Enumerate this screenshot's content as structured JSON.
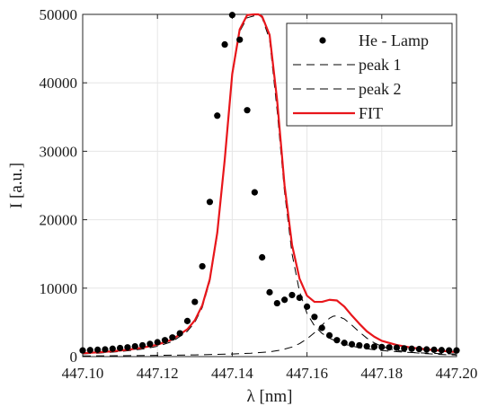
{
  "chart_data": {
    "type": "scatter",
    "xlabel": "λ [nm]",
    "ylabel": "I [a.u.]",
    "xlim": [
      447.1,
      447.2
    ],
    "ylim": [
      0,
      50000
    ],
    "x_ticks": [
      "447.10",
      "447.12",
      "447.14",
      "447.16",
      "447.18",
      "447.20"
    ],
    "y_ticks": [
      "0",
      "10000",
      "20000",
      "30000",
      "40000",
      "50000"
    ],
    "grid": true,
    "legend_position": "top-right",
    "series": [
      {
        "name": "He - Lamp",
        "kind": "markers",
        "color": "#000000",
        "x": [
          447.1,
          447.102,
          447.104,
          447.106,
          447.108,
          447.11,
          447.112,
          447.114,
          447.116,
          447.118,
          447.12,
          447.122,
          447.124,
          447.126,
          447.128,
          447.13,
          447.132,
          447.134,
          447.136,
          447.138,
          447.14,
          447.142,
          447.144,
          447.146,
          447.148,
          447.15,
          447.152,
          447.154,
          447.156,
          447.158,
          447.16,
          447.162,
          447.164,
          447.166,
          447.168,
          447.17,
          447.172,
          447.174,
          447.176,
          447.178,
          447.18,
          447.182,
          447.184,
          447.186,
          447.188,
          447.19,
          447.192,
          447.194,
          447.196,
          447.198,
          447.2
        ],
        "y": [
          900,
          950,
          1000,
          1050,
          1150,
          1250,
          1350,
          1500,
          1650,
          1850,
          2100,
          2400,
          2800,
          3400,
          5200,
          8000,
          13200,
          22600,
          35200,
          45600,
          49900,
          46300,
          36000,
          24000,
          14500,
          9400,
          7800,
          8300,
          9000,
          8600,
          7300,
          5800,
          4200,
          3100,
          2400,
          2000,
          1800,
          1650,
          1500,
          1450,
          1400,
          1350,
          1300,
          1200,
          1150,
          1100,
          1050,
          1000,
          950,
          900,
          900
        ]
      },
      {
        "name": "peak 1",
        "kind": "dashed-line",
        "color": "#000000",
        "x": [
          447.1,
          447.104,
          447.108,
          447.112,
          447.116,
          447.12,
          447.124,
          447.128,
          447.13,
          447.132,
          447.134,
          447.136,
          447.138,
          447.14,
          447.142,
          447.144,
          447.146,
          447.147,
          447.148,
          447.15,
          447.152,
          447.154,
          447.156,
          447.158,
          447.16,
          447.162,
          447.164,
          447.166,
          447.168,
          447.17,
          447.174,
          447.178,
          447.182,
          447.186,
          447.19,
          447.195,
          447.2
        ],
        "y": [
          400,
          500,
          650,
          850,
          1100,
          1500,
          2200,
          3700,
          5000,
          7200,
          11000,
          17800,
          28500,
          41000,
          47500,
          49500,
          49800,
          50000,
          49500,
          46300,
          36000,
          24000,
          15000,
          9500,
          6300,
          4500,
          3400,
          2700,
          2200,
          1800,
          1300,
          1000,
          800,
          650,
          550,
          450,
          380
        ]
      },
      {
        "name": "peak 2",
        "kind": "dashed-line",
        "color": "#000000",
        "x": [
          447.1,
          447.11,
          447.12,
          447.13,
          447.14,
          447.145,
          447.15,
          447.153,
          447.156,
          447.158,
          447.16,
          447.162,
          447.164,
          447.166,
          447.167,
          447.168,
          447.17,
          447.172,
          447.174,
          447.176,
          447.178,
          447.18,
          447.183,
          447.186,
          447.19,
          447.195,
          447.2
        ],
        "y": [
          100,
          130,
          180,
          250,
          380,
          500,
          700,
          950,
          1400,
          1900,
          2600,
          3500,
          4600,
          5600,
          5900,
          5950,
          5500,
          4600,
          3600,
          2700,
          2000,
          1500,
          1000,
          750,
          500,
          330,
          230
        ]
      },
      {
        "name": "FIT",
        "kind": "line",
        "color": "#e8161b",
        "x": [
          447.1,
          447.104,
          447.108,
          447.112,
          447.116,
          447.12,
          447.124,
          447.128,
          447.13,
          447.132,
          447.134,
          447.136,
          447.138,
          447.14,
          447.142,
          447.144,
          447.146,
          447.147,
          447.148,
          447.15,
          447.152,
          447.154,
          447.156,
          447.158,
          447.16,
          447.162,
          447.164,
          447.166,
          447.168,
          447.17,
          447.172,
          447.174,
          447.176,
          447.178,
          447.18,
          447.184,
          447.188,
          447.192,
          447.196,
          447.2
        ],
        "y": [
          500,
          620,
          780,
          1000,
          1300,
          1750,
          2500,
          4000,
          5300,
          7500,
          11300,
          18100,
          28800,
          41300,
          47800,
          49900,
          50000,
          50000,
          49700,
          47000,
          37500,
          25000,
          16300,
          11400,
          8900,
          8000,
          8000,
          8300,
          8200,
          7300,
          6000,
          4800,
          3700,
          2900,
          2300,
          1700,
          1300,
          1050,
          850,
          650
        ]
      }
    ]
  }
}
